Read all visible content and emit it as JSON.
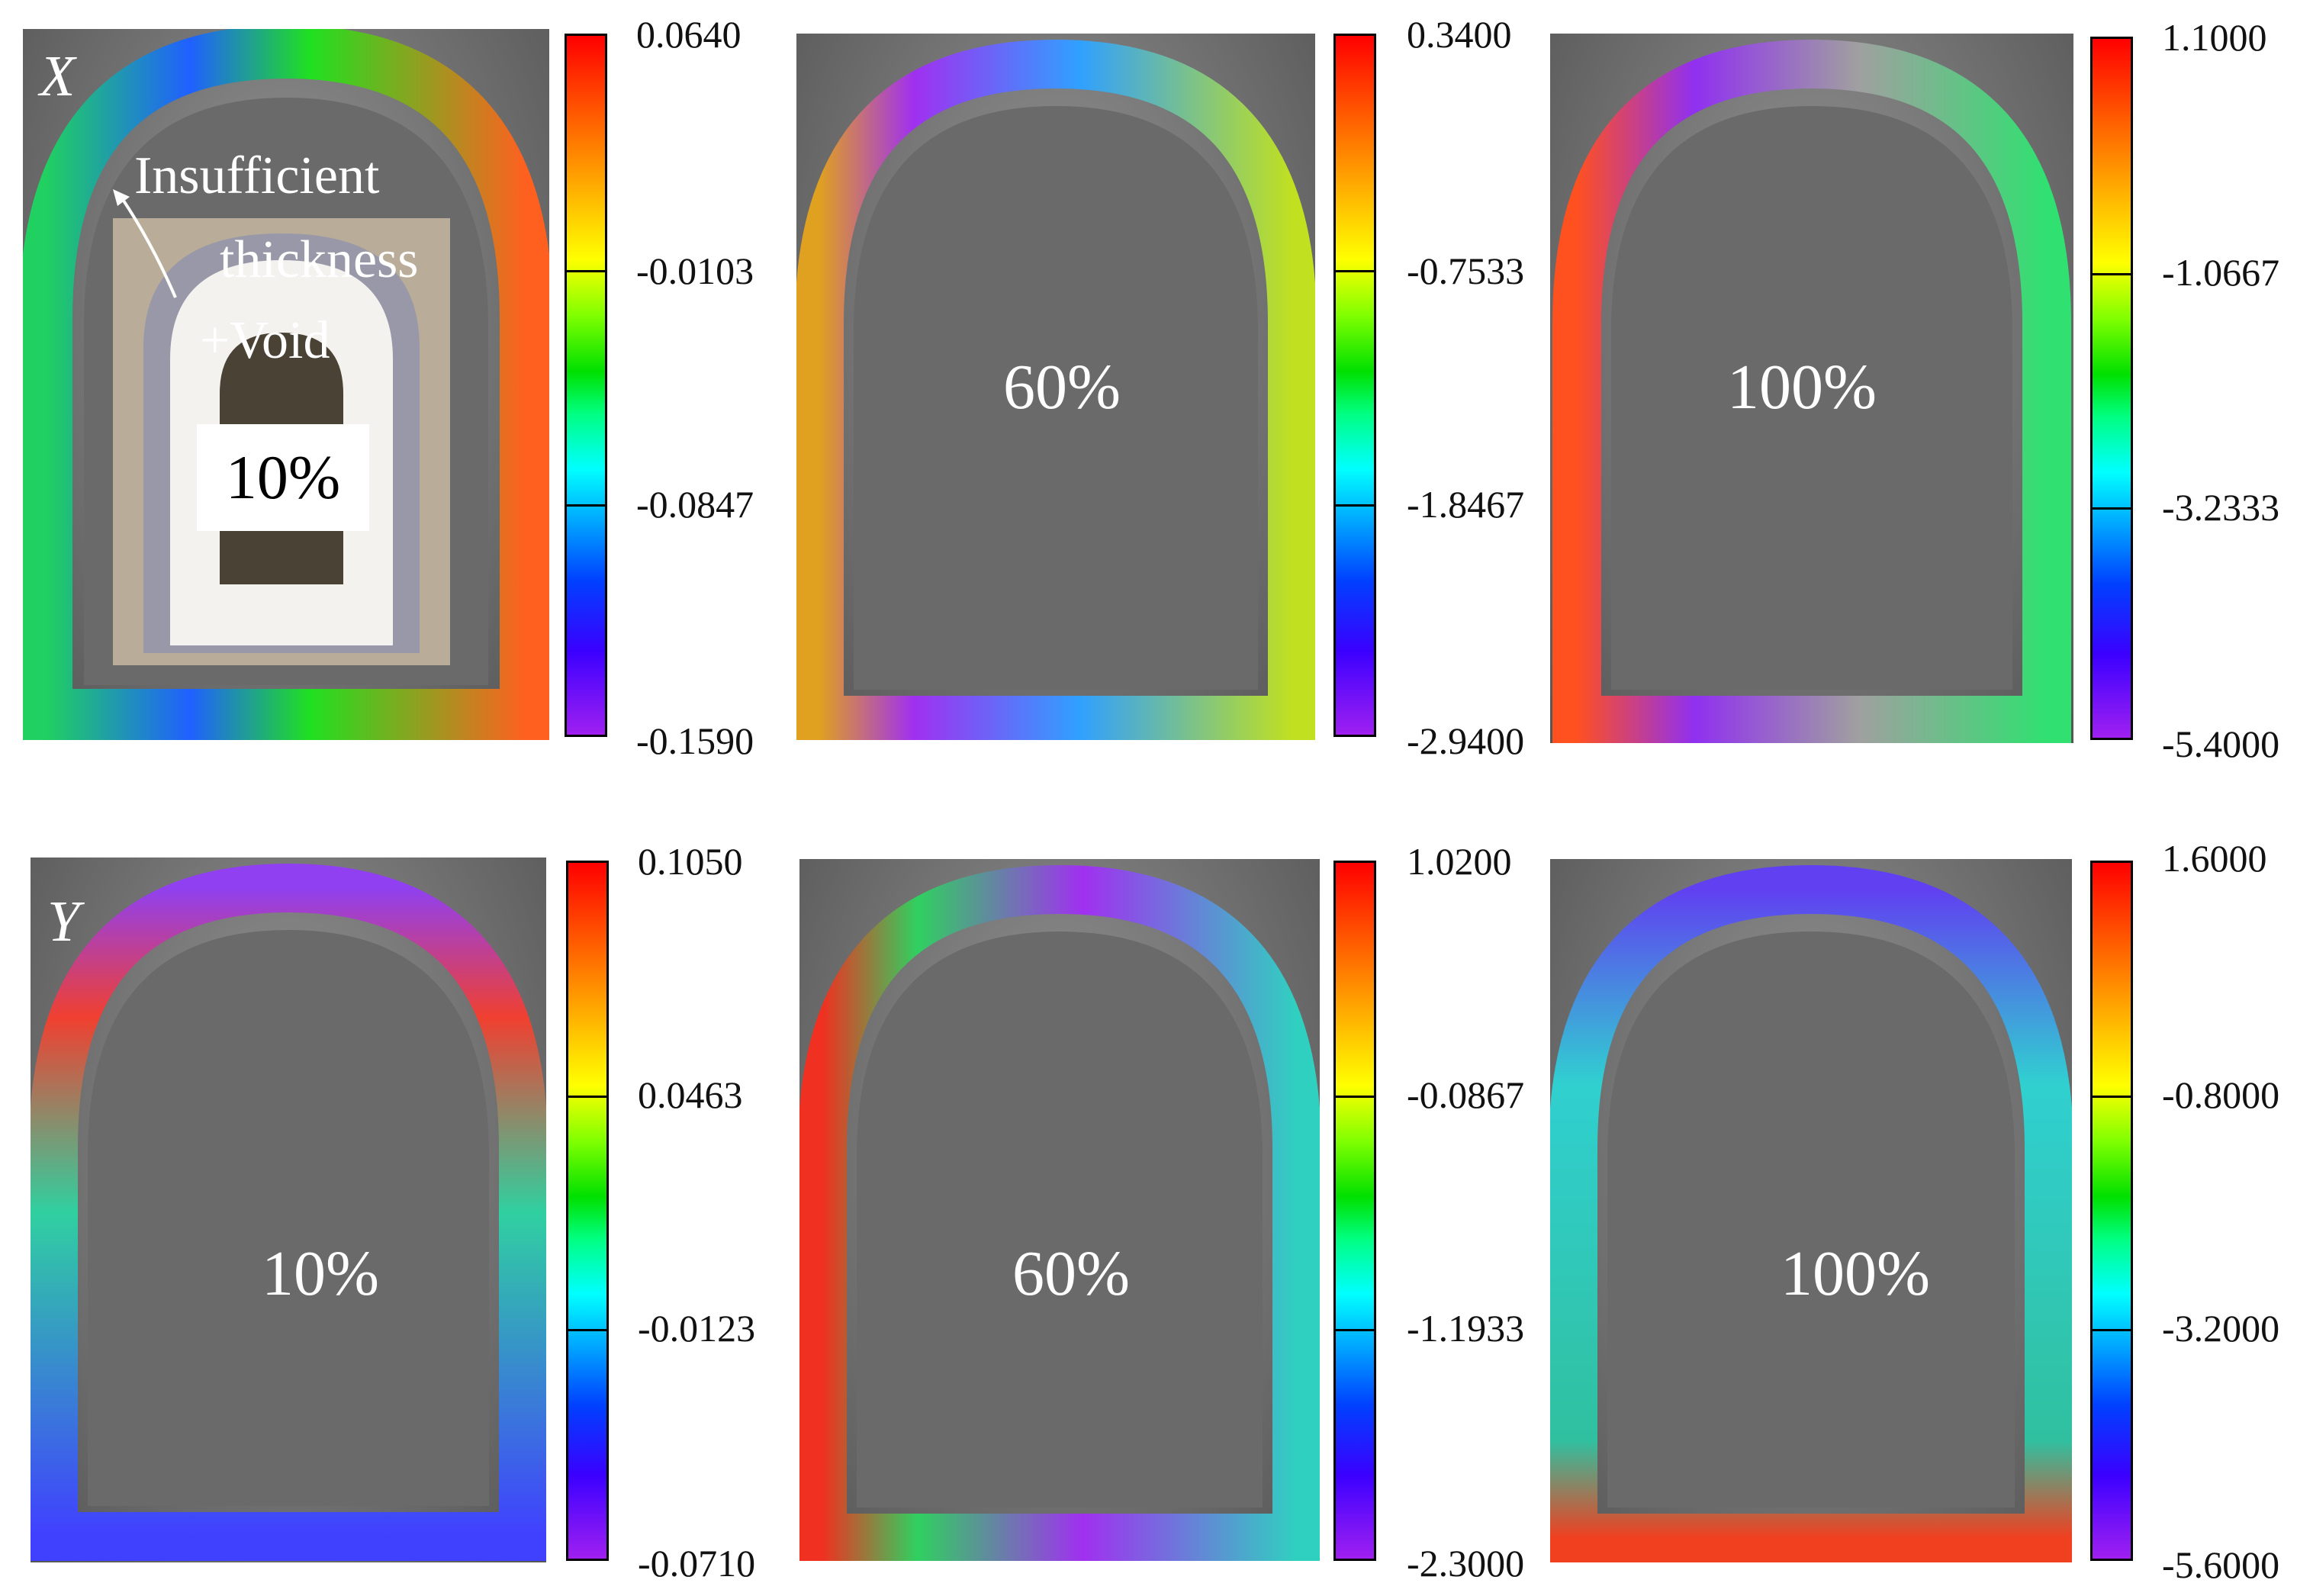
{
  "figure": {
    "row_labels": {
      "x": "X",
      "y": "Y"
    },
    "panels": [
      {
        "id": "x-10",
        "row": "X",
        "stage": "10%",
        "ticks": [
          "0.0640",
          "-0.0103",
          "-0.0847",
          "-0.1590"
        ]
      },
      {
        "id": "x-60",
        "row": "X",
        "stage": "60%",
        "ticks": [
          "0.3400",
          "-0.7533",
          "-1.8467",
          "-2.9400"
        ]
      },
      {
        "id": "x-100",
        "row": "X",
        "stage": "100%",
        "ticks": [
          "1.1000",
          "-1.0667",
          "-3.2333",
          "-5.4000"
        ]
      },
      {
        "id": "y-10",
        "row": "Y",
        "stage": "10%",
        "ticks": [
          "0.1050",
          "0.0463",
          "-0.0123",
          "-0.0710"
        ]
      },
      {
        "id": "y-60",
        "row": "Y",
        "stage": "60%",
        "ticks": [
          "1.0200",
          "-0.0867",
          "-1.1933",
          "-2.3000"
        ]
      },
      {
        "id": "y-100",
        "row": "Y",
        "stage": "100%",
        "ticks": [
          "1.6000",
          "-0.8000",
          "-3.2000",
          "-5.6000"
        ]
      }
    ],
    "inset": {
      "line1": "Insufficient",
      "line2": "thickness",
      "line3": "+Void",
      "stage": "10%"
    },
    "colors": {
      "colormap": [
        "#a020f0",
        "#0040ff",
        "#00ffff",
        "#00e000",
        "#ffff00",
        "#ff7000",
        "#ff0000"
      ]
    }
  }
}
